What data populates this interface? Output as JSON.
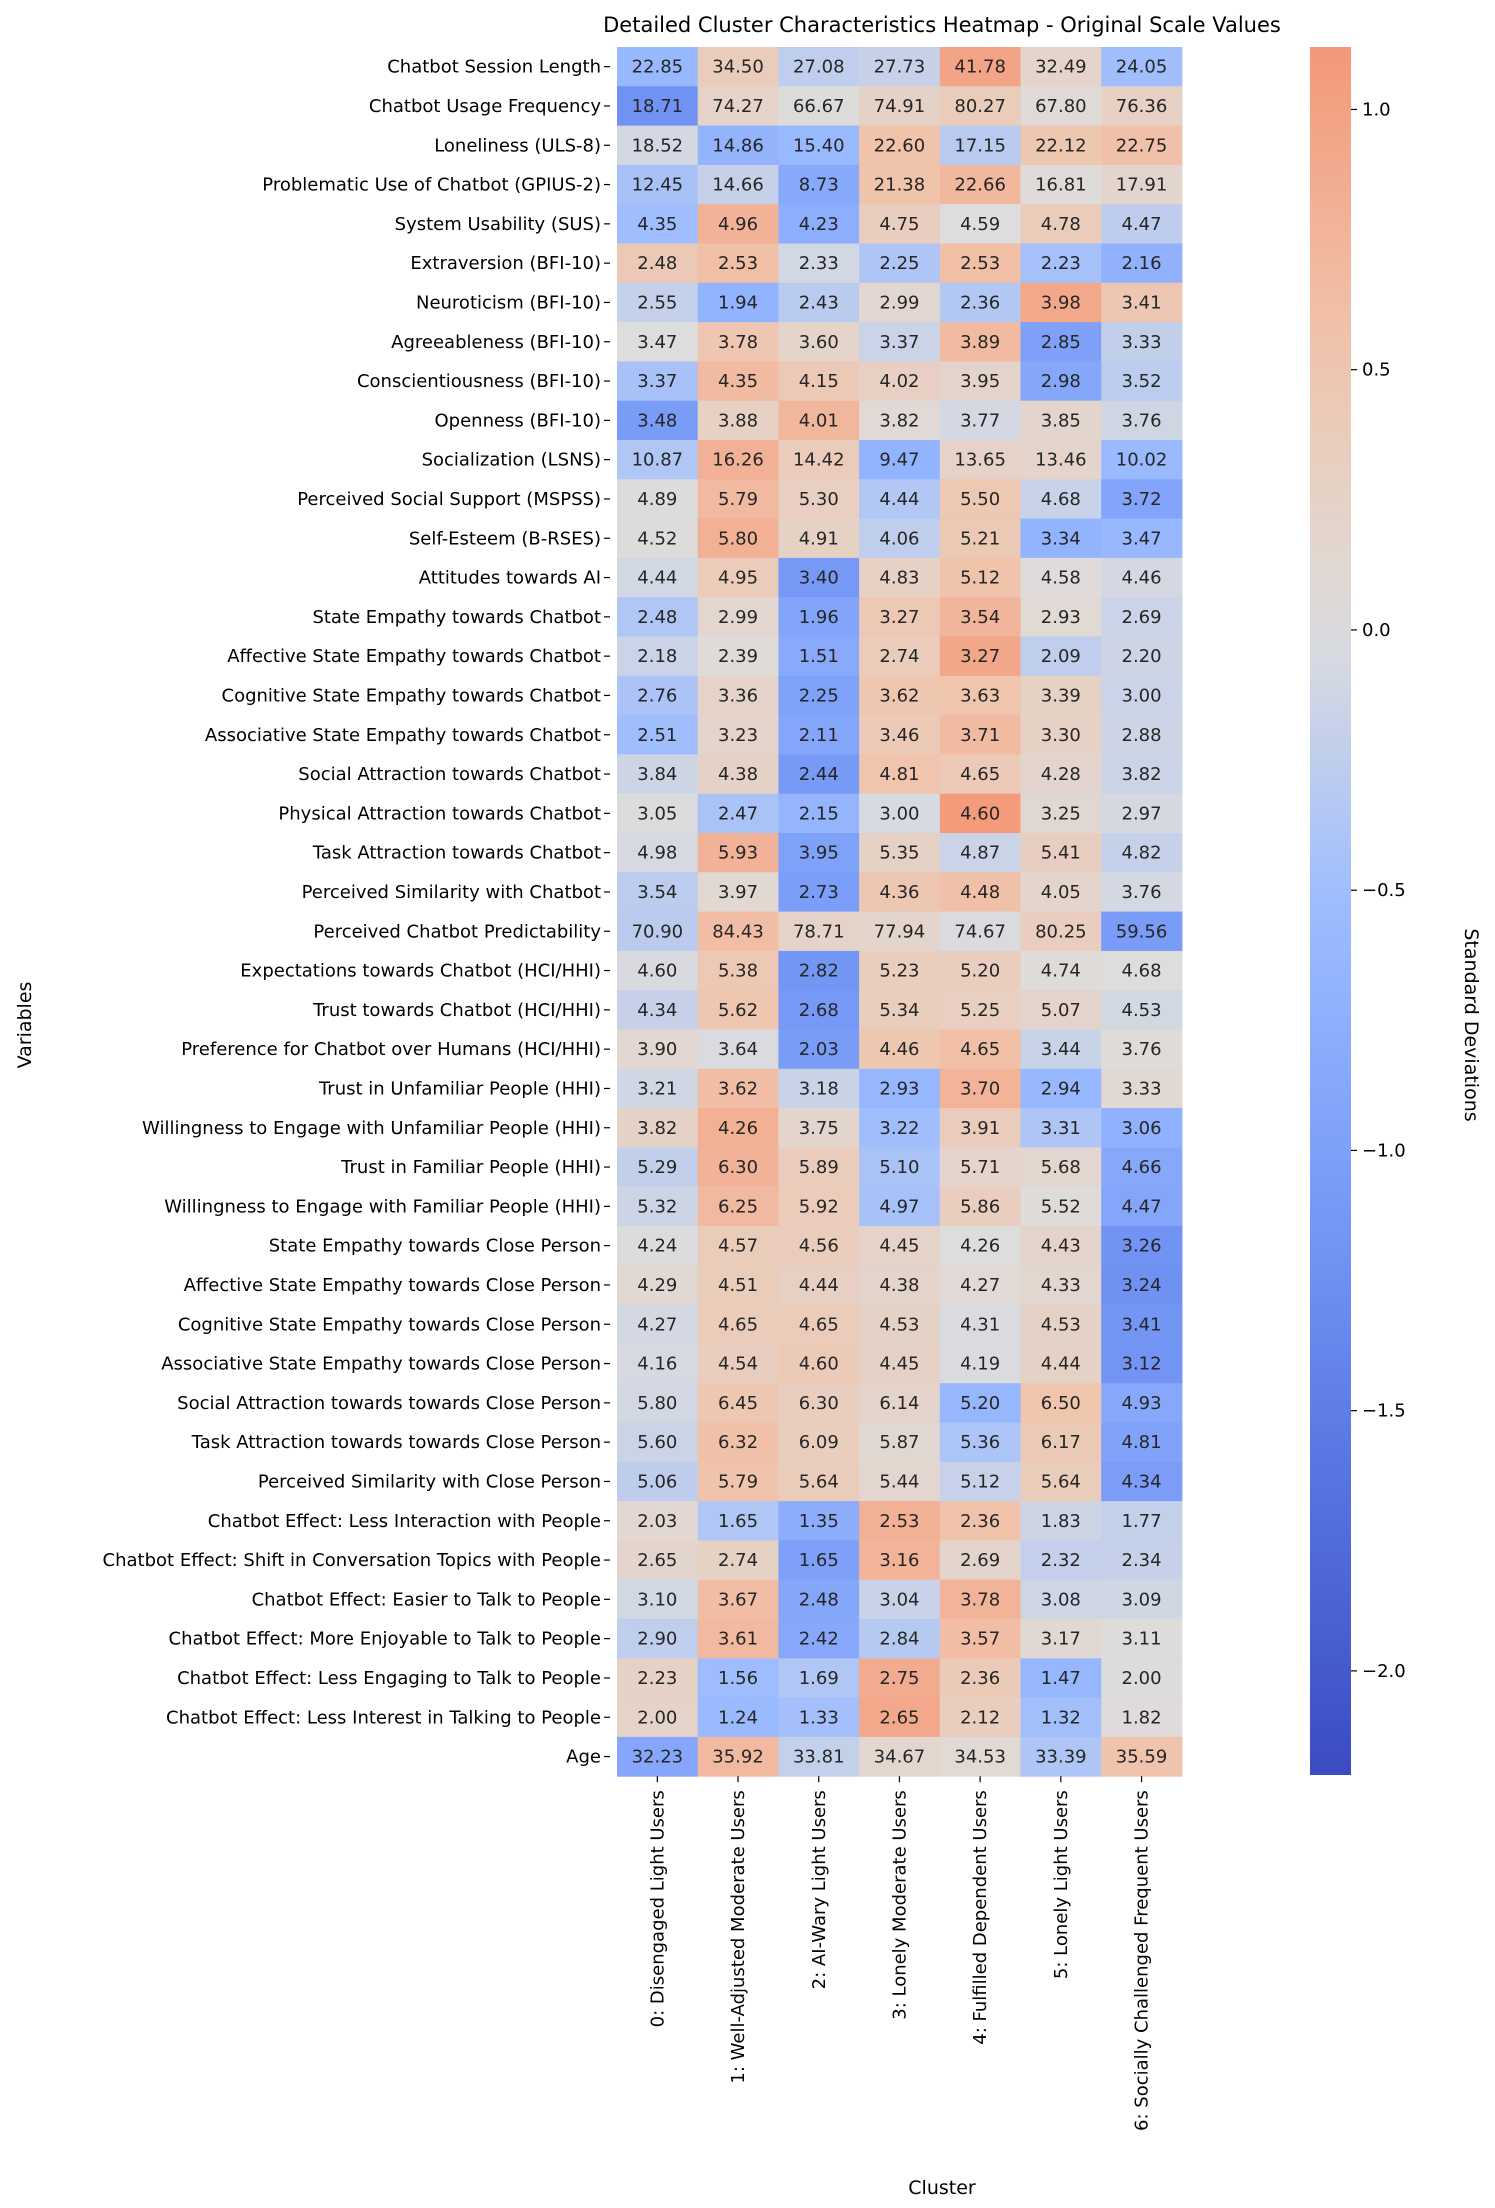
{
  "chart_data": {
    "type": "heatmap",
    "title": "Detailed Cluster Characteristics Heatmap - Original Scale Values",
    "xlabel": "Cluster",
    "ylabel": "Variables",
    "colorbar_label": "Standard Deviations",
    "colorbar_range": [
      -2.2,
      1.12
    ],
    "colorbar_ticks": [
      1.0,
      0.5,
      0.0,
      -0.5,
      -1.0,
      -1.5,
      -2.0
    ],
    "colorbar_tick_labels": [
      "1.0",
      "0.5",
      "0.0",
      "−0.5",
      "−1.0",
      "−1.5",
      "−2.0"
    ],
    "colormap": "coolwarm",
    "columns": [
      "0: Disengaged Light Users",
      "1: Well-Adjusted Moderate Users",
      "2: AI-Wary Light Users",
      "3: Lonely Moderate Users",
      "4: Fulfilled Dependent Users",
      "5: Lonely Light Users",
      "6: Socially Challenged Frequent Users"
    ],
    "rows": [
      {
        "label": "Chatbot Session Length",
        "values": [
          "22.85",
          "34.50",
          "27.08",
          "27.73",
          "41.78",
          "32.49",
          "24.05"
        ]
      },
      {
        "label": "Chatbot Usage Frequency",
        "values": [
          "18.71",
          "74.27",
          "66.67",
          "74.91",
          "80.27",
          "67.80",
          "76.36"
        ]
      },
      {
        "label": "Loneliness (ULS-8)",
        "values": [
          "18.52",
          "14.86",
          "15.40",
          "22.60",
          "17.15",
          "22.12",
          "22.75"
        ]
      },
      {
        "label": "Problematic Use of Chatbot (GPIUS-2)",
        "values": [
          "12.45",
          "14.66",
          "8.73",
          "21.38",
          "22.66",
          "16.81",
          "17.91"
        ]
      },
      {
        "label": "System Usability (SUS)",
        "values": [
          "4.35",
          "4.96",
          "4.23",
          "4.75",
          "4.59",
          "4.78",
          "4.47"
        ]
      },
      {
        "label": "Extraversion (BFI-10)",
        "values": [
          "2.48",
          "2.53",
          "2.33",
          "2.25",
          "2.53",
          "2.23",
          "2.16"
        ]
      },
      {
        "label": "Neuroticism (BFI-10)",
        "values": [
          "2.55",
          "1.94",
          "2.43",
          "2.99",
          "2.36",
          "3.98",
          "3.41"
        ]
      },
      {
        "label": "Agreeableness (BFI-10)",
        "values": [
          "3.47",
          "3.78",
          "3.60",
          "3.37",
          "3.89",
          "2.85",
          "3.33"
        ]
      },
      {
        "label": "Conscientiousness (BFI-10)",
        "values": [
          "3.37",
          "4.35",
          "4.15",
          "4.02",
          "3.95",
          "2.98",
          "3.52"
        ]
      },
      {
        "label": "Openness (BFI-10)",
        "values": [
          "3.48",
          "3.88",
          "4.01",
          "3.82",
          "3.77",
          "3.85",
          "3.76"
        ]
      },
      {
        "label": "Socialization (LSNS)",
        "values": [
          "10.87",
          "16.26",
          "14.42",
          "9.47",
          "13.65",
          "13.46",
          "10.02"
        ]
      },
      {
        "label": "Perceived Social Support (MSPSS)",
        "values": [
          "4.89",
          "5.79",
          "5.30",
          "4.44",
          "5.50",
          "4.68",
          "3.72"
        ]
      },
      {
        "label": "Self-Esteem (B-RSES)",
        "values": [
          "4.52",
          "5.80",
          "4.91",
          "4.06",
          "5.21",
          "3.34",
          "3.47"
        ]
      },
      {
        "label": "Attitudes towards AI",
        "values": [
          "4.44",
          "4.95",
          "3.40",
          "4.83",
          "5.12",
          "4.58",
          "4.46"
        ]
      },
      {
        "label": "State Empathy towards Chatbot",
        "values": [
          "2.48",
          "2.99",
          "1.96",
          "3.27",
          "3.54",
          "2.93",
          "2.69"
        ]
      },
      {
        "label": "Affective State Empathy towards Chatbot",
        "values": [
          "2.18",
          "2.39",
          "1.51",
          "2.74",
          "3.27",
          "2.09",
          "2.20"
        ]
      },
      {
        "label": "Cognitive State Empathy towards Chatbot",
        "values": [
          "2.76",
          "3.36",
          "2.25",
          "3.62",
          "3.63",
          "3.39",
          "3.00"
        ]
      },
      {
        "label": "Associative State Empathy towards Chatbot",
        "values": [
          "2.51",
          "3.23",
          "2.11",
          "3.46",
          "3.71",
          "3.30",
          "2.88"
        ]
      },
      {
        "label": "Social Attraction towards Chatbot",
        "values": [
          "3.84",
          "4.38",
          "2.44",
          "4.81",
          "4.65",
          "4.28",
          "3.82"
        ]
      },
      {
        "label": "Physical Attraction towards Chatbot",
        "values": [
          "3.05",
          "2.47",
          "2.15",
          "3.00",
          "4.60",
          "3.25",
          "2.97"
        ]
      },
      {
        "label": "Task Attraction towards Chatbot",
        "values": [
          "4.98",
          "5.93",
          "3.95",
          "5.35",
          "4.87",
          "5.41",
          "4.82"
        ]
      },
      {
        "label": "Perceived Similarity with Chatbot",
        "values": [
          "3.54",
          "3.97",
          "2.73",
          "4.36",
          "4.48",
          "4.05",
          "3.76"
        ]
      },
      {
        "label": "Perceived Chatbot Predictability",
        "values": [
          "70.90",
          "84.43",
          "78.71",
          "77.94",
          "74.67",
          "80.25",
          "59.56"
        ]
      },
      {
        "label": "Expectations towards Chatbot (HCI/HHI)",
        "values": [
          "4.60",
          "5.38",
          "2.82",
          "5.23",
          "5.20",
          "4.74",
          "4.68"
        ]
      },
      {
        "label": "Trust towards Chatbot (HCI/HHI)",
        "values": [
          "4.34",
          "5.62",
          "2.68",
          "5.34",
          "5.25",
          "5.07",
          "4.53"
        ]
      },
      {
        "label": "Preference for Chatbot over Humans (HCI/HHI)",
        "values": [
          "3.90",
          "3.64",
          "2.03",
          "4.46",
          "4.65",
          "3.44",
          "3.76"
        ]
      },
      {
        "label": "Trust in Unfamiliar People (HHI)",
        "values": [
          "3.21",
          "3.62",
          "3.18",
          "2.93",
          "3.70",
          "2.94",
          "3.33"
        ]
      },
      {
        "label": "Willingness to Engage with Unfamiliar People (HHI)",
        "values": [
          "3.82",
          "4.26",
          "3.75",
          "3.22",
          "3.91",
          "3.31",
          "3.06"
        ]
      },
      {
        "label": "Trust in Familiar People (HHI)",
        "values": [
          "5.29",
          "6.30",
          "5.89",
          "5.10",
          "5.71",
          "5.68",
          "4.66"
        ]
      },
      {
        "label": "Willingness to Engage with Familiar People (HHI)",
        "values": [
          "5.32",
          "6.25",
          "5.92",
          "4.97",
          "5.86",
          "5.52",
          "4.47"
        ]
      },
      {
        "label": "State Empathy towards Close Person",
        "values": [
          "4.24",
          "4.57",
          "4.56",
          "4.45",
          "4.26",
          "4.43",
          "3.26"
        ]
      },
      {
        "label": "Affective State Empathy towards Close Person",
        "values": [
          "4.29",
          "4.51",
          "4.44",
          "4.38",
          "4.27",
          "4.33",
          "3.24"
        ]
      },
      {
        "label": "Cognitive State Empathy towards Close Person",
        "values": [
          "4.27",
          "4.65",
          "4.65",
          "4.53",
          "4.31",
          "4.53",
          "3.41"
        ]
      },
      {
        "label": "Associative State Empathy towards Close Person",
        "values": [
          "4.16",
          "4.54",
          "4.60",
          "4.45",
          "4.19",
          "4.44",
          "3.12"
        ]
      },
      {
        "label": "Social Attraction towards towards Close Person",
        "values": [
          "5.80",
          "6.45",
          "6.30",
          "6.14",
          "5.20",
          "6.50",
          "4.93"
        ]
      },
      {
        "label": "Task Attraction towards towards Close Person",
        "values": [
          "5.60",
          "6.32",
          "6.09",
          "5.87",
          "5.36",
          "6.17",
          "4.81"
        ]
      },
      {
        "label": "Perceived Similarity with Close Person",
        "values": [
          "5.06",
          "5.79",
          "5.64",
          "5.44",
          "5.12",
          "5.64",
          "4.34"
        ]
      },
      {
        "label": "Chatbot Effect: Less Interaction with People",
        "values": [
          "2.03",
          "1.65",
          "1.35",
          "2.53",
          "2.36",
          "1.83",
          "1.77"
        ]
      },
      {
        "label": "Chatbot Effect: Shift in Conversation Topics with People",
        "values": [
          "2.65",
          "2.74",
          "1.65",
          "3.16",
          "2.69",
          "2.32",
          "2.34"
        ]
      },
      {
        "label": "Chatbot Effect: Easier to Talk to People",
        "values": [
          "3.10",
          "3.67",
          "2.48",
          "3.04",
          "3.78",
          "3.08",
          "3.09"
        ]
      },
      {
        "label": "Chatbot Effect: More Enjoyable to Talk to People",
        "values": [
          "2.90",
          "3.61",
          "2.42",
          "2.84",
          "3.57",
          "3.17",
          "3.11"
        ]
      },
      {
        "label": "Chatbot Effect: Less Engaging to Talk to People",
        "values": [
          "2.23",
          "1.56",
          "1.69",
          "2.75",
          "2.36",
          "1.47",
          "2.00"
        ]
      },
      {
        "label": "Chatbot Effect: Less Interest in Talking to People",
        "values": [
          "2.00",
          "1.24",
          "1.33",
          "2.65",
          "2.12",
          "1.32",
          "1.82"
        ]
      },
      {
        "label": "Age",
        "values": [
          "32.23",
          "35.92",
          "33.81",
          "34.67",
          "34.53",
          "33.39",
          "35.59"
        ]
      }
    ]
  }
}
